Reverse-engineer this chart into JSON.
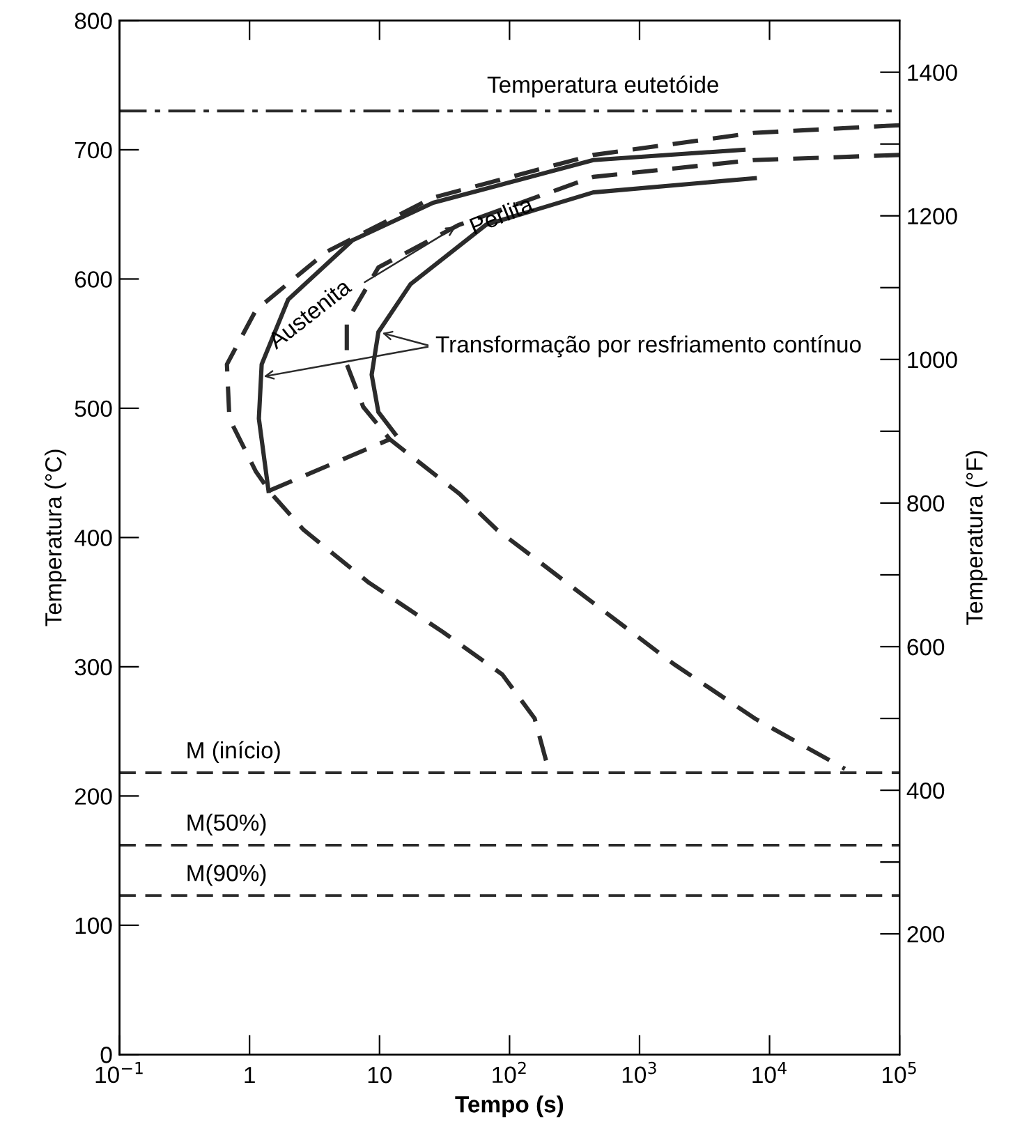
{
  "chart_data": {
    "type": "line",
    "xlabel": "Tempo (s)",
    "ylabel": "Temperatura (°C)",
    "y2label": "Temperatura (°F)",
    "log": "x",
    "xlim": [
      0.1,
      100000
    ],
    "xticks": [
      {
        "value": 0.1,
        "label": "10$^{−1}$"
      },
      1,
      10,
      {
        "value": 100,
        "label": "10$^{2}$"
      },
      {
        "value": 1000,
        "label": "10$^{3}$"
      },
      {
        "value": 10000,
        "label": "10$^{4}$"
      },
      {
        "value": 100000,
        "label": "10$^{5}$"
      }
    ],
    "ylim": [
      0,
      800
    ],
    "yticks": [
      0,
      100,
      200,
      300,
      400,
      500,
      600,
      700,
      800
    ],
    "y2lim": [
      32,
      1472
    ],
    "y2ticks": [
      200,
      {
        "value": 300,
        "label": null
      },
      400,
      {
        "value": 500,
        "label": null
      },
      600,
      {
        "value": 700,
        "label": null
      },
      800,
      {
        "value": 900,
        "label": null
      },
      1000,
      {
        "value": 1100,
        "label": null
      },
      1200,
      {
        "value": 1300,
        "label": null
      },
      1400
    ],
    "grid": false,
    "marker": "none",
    "series": [
      {
        "color": "#2b2b2b",
        "line_style": "dashed",
        "x": [
          100000,
          7500,
          440,
          25.8,
          3.9,
          1.12,
          0.67,
          0.7,
          1.12,
          1.47,
          2.6,
          8.3,
          30.6,
          88,
          156,
          195
        ],
        "values": [
          719,
          713,
          696,
          663,
          621,
          576,
          534,
          492,
          451,
          434,
          406,
          365,
          327,
          294,
          260,
          224
        ]
      },
      {
        "color": "#2b2b2b",
        "line_style": "solid",
        "x": [
          6300,
          440,
          25.8,
          6.2,
          1.98,
          1.24,
          1.18,
          1.4
        ],
        "values": [
          700,
          692,
          659,
          630,
          584,
          534,
          492,
          436
        ]
      },
      {
        "color": "#2b2b2b",
        "line_style": "dashed",
        "x": [
          1.4,
          12
        ],
        "values": [
          436,
          476
        ]
      },
      {
        "color": "#2b2b2b",
        "line_style": "dashed",
        "x": [
          100000,
          7500,
          440,
          41,
          9.8,
          5.6,
          5.6,
          7.5,
          12,
          41,
          80,
          156,
          275,
          1840,
          7700,
          38000
        ],
        "values": [
          696,
          692,
          679,
          642,
          609,
          567,
          534,
          501,
          476,
          434,
          406,
          384,
          365,
          302,
          260,
          221
        ]
      },
      {
        "color": "#2b2b2b",
        "line_style": "solid",
        "x": [
          7700,
          440,
          66,
          17.3,
          9.8,
          8.7,
          9.8,
          13.2
        ],
        "values": [
          678,
          667,
          642,
          596,
          559,
          526,
          497,
          480
        ]
      }
    ],
    "ref_lines": [
      {
        "axis": "y",
        "value": 730,
        "label": "Temperatura eutetóide",
        "line_style": "dashdot",
        "color": "#2b2b2b"
      },
      {
        "axis": "y",
        "value": 218,
        "label": "M (início)",
        "line_style": "dashed",
        "color": "#2b2b2b"
      },
      {
        "axis": "y",
        "value": 162,
        "label": "M(50%)",
        "line_style": "dashed",
        "color": "#2b2b2b"
      },
      {
        "axis": "y",
        "value": 123,
        "label": "M(90%)",
        "line_style": "dashed",
        "color": "#2b2b2b"
      }
    ],
    "annotations": [
      {
        "text": "Austenita",
        "x": 41,
        "y": 642
      },
      "Perlita",
      {
        "text": "Transformação por resfriamento contínuo",
        "x": 1.2,
        "y": 524
      }
    ]
  }
}
